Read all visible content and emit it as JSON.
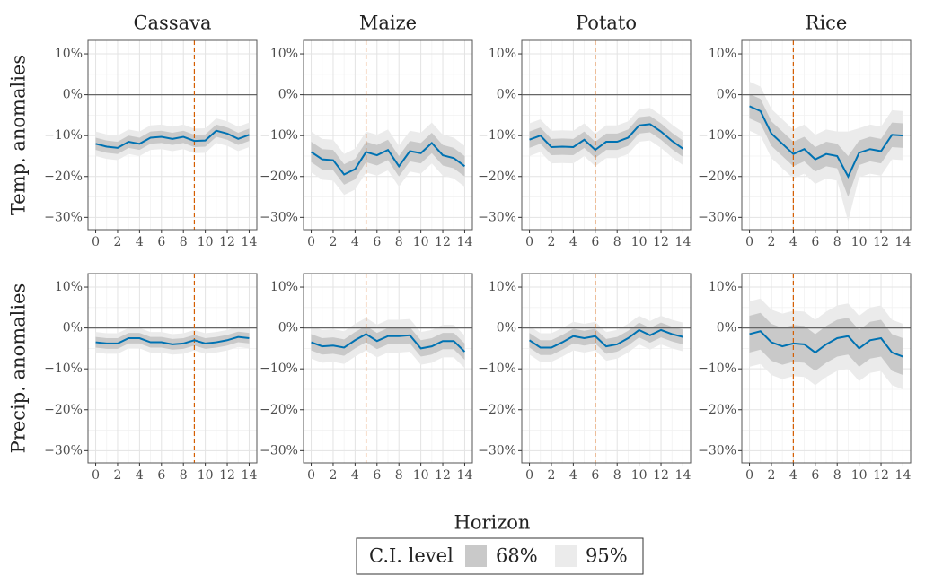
{
  "chart_data": {
    "type": "line",
    "columns": [
      "Cassava",
      "Maize",
      "Potato",
      "Rice"
    ],
    "rows": [
      "Temp. anomalies",
      "Precip. anomalies"
    ],
    "xlabel": "Horizon",
    "legend_title": "C.I. level",
    "bands": [
      {
        "name": "68%",
        "color": "#c9c9c9"
      },
      {
        "name": "95%",
        "color": "#ebebeb"
      }
    ],
    "line_color": "#0072b2",
    "vline_color": "#d55e00",
    "hline_color": "#666666",
    "hline": 0,
    "grid": true,
    "x": [
      0,
      1,
      2,
      3,
      4,
      5,
      6,
      7,
      8,
      9,
      10,
      11,
      12,
      13,
      14
    ],
    "xlim": [
      -0.7,
      14.7
    ],
    "xticks": [
      0,
      2,
      4,
      6,
      8,
      10,
      12,
      14
    ],
    "ylim": [
      -33,
      13.3
    ],
    "yticks": [
      {
        "value": 10,
        "label": "10%"
      },
      {
        "value": 0,
        "label": "0%"
      },
      {
        "value": -10,
        "label": "−10%"
      },
      {
        "value": -20,
        "label": "−20%"
      },
      {
        "value": -30,
        "label": "−30%"
      }
    ],
    "panels": [
      [
        {
          "vline": 9,
          "values": [
            -12,
            -12.7,
            -13,
            -11.5,
            -12,
            -10.5,
            -10.3,
            -10.8,
            -10.3,
            -11.3,
            -11.2,
            -8.8,
            -9.5,
            -10.8,
            -9.8
          ],
          "lo68": [
            -13.5,
            -14.2,
            -14.5,
            -13,
            -13.5,
            -12,
            -11.8,
            -12.3,
            -11.8,
            -12.8,
            -12.7,
            -10.3,
            -11,
            -12.3,
            -11.3
          ],
          "hi68": [
            -10.5,
            -11.2,
            -11.5,
            -10,
            -10.5,
            -9,
            -8.8,
            -9.3,
            -8.8,
            -9.8,
            -9.7,
            -7.3,
            -8,
            -9.3,
            -8.3
          ],
          "lo95": [
            -15,
            -15.7,
            -16,
            -14.5,
            -15,
            -13.5,
            -13.3,
            -13.8,
            -13.3,
            -14.3,
            -14.2,
            -11.8,
            -12.5,
            -13.8,
            -12.8
          ],
          "hi95": [
            -9,
            -9.7,
            -10,
            -8.5,
            -9,
            -7.5,
            -7.3,
            -7.8,
            -7.3,
            -8.3,
            -8.2,
            -5.8,
            -6.5,
            -7.8,
            -6.8
          ]
        },
        {
          "vline": 5,
          "values": [
            -14,
            -15.8,
            -16,
            -19.5,
            -18.2,
            -14,
            -14.8,
            -13.5,
            -17.5,
            -13.8,
            -14.3,
            -11.8,
            -14.8,
            -15.5,
            -17.5
          ],
          "lo68": [
            -16.5,
            -18.3,
            -18.5,
            -22,
            -20.7,
            -16.5,
            -17.3,
            -16,
            -20,
            -16.3,
            -16.8,
            -14.3,
            -17.3,
            -18,
            -20
          ],
          "hi68": [
            -11.5,
            -13.3,
            -13.5,
            -17,
            -15.7,
            -11.5,
            -12.3,
            -11,
            -15,
            -11.3,
            -11.8,
            -9.3,
            -12.3,
            -13,
            -15
          ],
          "lo95": [
            -19,
            -20.8,
            -21,
            -24.5,
            -23.2,
            -19,
            -19.8,
            -18.5,
            -22.5,
            -18.8,
            -19.3,
            -16.8,
            -19.8,
            -20.5,
            -22.5
          ],
          "hi95": [
            -9,
            -10.8,
            -11,
            -14.5,
            -13.2,
            -9,
            -9.8,
            -8.5,
            -12.5,
            -8.8,
            -9.3,
            -6.8,
            -9.8,
            -10.5,
            -12.5
          ]
        },
        {
          "vline": 6,
          "values": [
            -11,
            -10,
            -12.8,
            -12.7,
            -12.8,
            -11,
            -13.5,
            -11.5,
            -11.5,
            -10.5,
            -7.5,
            -7.2,
            -9,
            -11.3,
            -13.2
          ],
          "lo68": [
            -13,
            -12,
            -14.8,
            -14.7,
            -14.8,
            -13,
            -15.5,
            -13.5,
            -13.5,
            -12.5,
            -9.5,
            -9.2,
            -11,
            -13.3,
            -15.2
          ],
          "hi68": [
            -9,
            -8,
            -10.8,
            -10.7,
            -10.8,
            -9,
            -11.5,
            -9.5,
            -9.5,
            -8.5,
            -5.5,
            -5.2,
            -7,
            -9.3,
            -11.2
          ],
          "lo95": [
            -15,
            -14,
            -16.8,
            -16.7,
            -16.8,
            -15,
            -17.5,
            -15.5,
            -15.5,
            -14.5,
            -11.5,
            -11.2,
            -13,
            -15.3,
            -17.2
          ],
          "hi95": [
            -7,
            -6,
            -8.8,
            -8.7,
            -8.8,
            -7,
            -9.5,
            -7.5,
            -7.5,
            -6.5,
            -3.5,
            -3.2,
            -5,
            -7.3,
            -9.2
          ]
        },
        {
          "vline": 4,
          "values": [
            -2.8,
            -4,
            -9.5,
            -12,
            -14.5,
            -13.3,
            -15.8,
            -14.5,
            -15,
            -20,
            -14.2,
            -13.3,
            -13.8,
            -9.8,
            -10
          ],
          "lo68": [
            -5.8,
            -7,
            -12.5,
            -15,
            -17.5,
            -16.3,
            -18.8,
            -17.5,
            -18,
            -25,
            -17.2,
            -16.3,
            -16.8,
            -12.8,
            -13
          ],
          "hi68": [
            0.2,
            -1,
            -6.5,
            -9,
            -11.5,
            -10.3,
            -12.8,
            -11.5,
            -12,
            -15,
            -11.2,
            -10.3,
            -10.8,
            -6.8,
            -7
          ],
          "lo95": [
            -8.8,
            -10,
            -15.5,
            -18,
            -20.5,
            -19.3,
            -21.8,
            -20.5,
            -21,
            -31,
            -20.2,
            -19.3,
            -19.8,
            -15.8,
            -16
          ],
          "hi95": [
            3.2,
            2,
            -3.5,
            -6,
            -8.5,
            -7.3,
            -9.8,
            -8.5,
            -9,
            -9,
            -8.2,
            -7.3,
            -7.8,
            -3.8,
            -4
          ]
        }
      ],
      [
        {
          "vline": 9,
          "values": [
            -3.5,
            -3.8,
            -3.8,
            -2.5,
            -2.5,
            -3.5,
            -3.5,
            -4,
            -3.8,
            -3,
            -3.8,
            -3.5,
            -3,
            -2.2,
            -2.5
          ],
          "lo68": [
            -4.8,
            -5.1,
            -5.1,
            -3.8,
            -3.8,
            -4.8,
            -4.8,
            -5.3,
            -5.1,
            -4.3,
            -5.1,
            -4.8,
            -4.3,
            -3.5,
            -3.8
          ],
          "hi68": [
            -2.2,
            -2.5,
            -2.5,
            -1.2,
            -1.2,
            -2.2,
            -2.2,
            -2.7,
            -2.5,
            -1.7,
            -2.5,
            -2.2,
            -1.7,
            -0.9,
            -1.2
          ],
          "lo95": [
            -6,
            -6.3,
            -6.3,
            -5,
            -5,
            -6,
            -6,
            -6.5,
            -6.3,
            -5.5,
            -6.3,
            -6,
            -5.5,
            -4.7,
            -5
          ],
          "hi95": [
            -1,
            -1.3,
            -1.3,
            0,
            0,
            -1,
            -1,
            -1.5,
            -1.3,
            -0.5,
            -1.3,
            -1,
            -0.5,
            0.3,
            0
          ]
        },
        {
          "vline": 5,
          "values": [
            -3.5,
            -4.5,
            -4.3,
            -4.8,
            -3,
            -1.5,
            -3.2,
            -2,
            -2,
            -1.8,
            -5,
            -4.5,
            -3.2,
            -3.2,
            -5.8
          ],
          "lo68": [
            -5.5,
            -6.5,
            -6.3,
            -6.8,
            -5,
            -3.5,
            -5.2,
            -4,
            -4,
            -3.8,
            -7,
            -6.5,
            -5.2,
            -5.2,
            -7.8
          ],
          "hi68": [
            -1.5,
            -2.5,
            -2.3,
            -2.8,
            -1,
            0.5,
            -1.2,
            0,
            0,
            0.2,
            -3,
            -2.5,
            -1.2,
            -1.2,
            -3.8
          ],
          "lo95": [
            -7.5,
            -8.5,
            -8.3,
            -8.8,
            -7,
            -5.5,
            -7.2,
            -6,
            -6,
            -5.8,
            -9,
            -8.5,
            -7.2,
            -7.2,
            -9.8
          ],
          "hi95": [
            0.5,
            -0.5,
            -0.3,
            -0.8,
            1,
            2.5,
            0.8,
            2,
            2,
            2.2,
            -1,
            -0.5,
            0.8,
            0.8,
            -1.8
          ]
        },
        {
          "vline": 6,
          "values": [
            -3,
            -4.8,
            -4.8,
            -3.5,
            -2,
            -2.5,
            -2,
            -4.5,
            -4,
            -2.5,
            -0.5,
            -1.8,
            -0.5,
            -1.5,
            -2.2
          ],
          "lo68": [
            -4.8,
            -6.6,
            -6.6,
            -5.3,
            -3.8,
            -4.3,
            -3.8,
            -6.3,
            -5.8,
            -4.3,
            -2.3,
            -3.6,
            -2.3,
            -3.3,
            -4
          ],
          "hi68": [
            -1.2,
            -3,
            -3,
            -1.7,
            -0.2,
            -0.7,
            -0.2,
            -2.7,
            -2.2,
            -0.7,
            1.3,
            0,
            1.3,
            0.3,
            -0.4
          ],
          "lo95": [
            -6.5,
            -8.3,
            -8.3,
            -7,
            -5.5,
            -6,
            -5.5,
            -8,
            -7.5,
            -6,
            -4,
            -5.3,
            -4,
            -5,
            -5.7
          ],
          "hi95": [
            0.5,
            -1.3,
            -1.3,
            0,
            1.5,
            1,
            1.5,
            -1,
            -0.5,
            1,
            3,
            1.7,
            3,
            2,
            1.3
          ]
        },
        {
          "vline": 4,
          "values": [
            -1.5,
            -0.8,
            -3.5,
            -4.5,
            -3.8,
            -4,
            -6,
            -4,
            -2.5,
            -2,
            -5,
            -3,
            -2.5,
            -6,
            -7
          ],
          "lo68": [
            -6,
            -5.3,
            -8,
            -9,
            -8.3,
            -8.5,
            -10.5,
            -8.5,
            -7,
            -6.5,
            -9.5,
            -7.5,
            -7,
            -10.5,
            -11.5
          ],
          "hi68": [
            3,
            3.7,
            1,
            0,
            0.7,
            0.5,
            -1.5,
            0.5,
            2,
            2.5,
            -0.5,
            1.5,
            2,
            -1.5,
            -2.5
          ],
          "lo95": [
            -9.5,
            -8.8,
            -11.5,
            -12.5,
            -11.8,
            -12,
            -14,
            -12,
            -10.5,
            -10,
            -13,
            -11,
            -10.5,
            -14,
            -15
          ],
          "hi95": [
            6.5,
            7.2,
            4.5,
            3.5,
            4.2,
            4,
            2,
            4,
            5.5,
            6,
            3,
            5,
            5.5,
            2,
            1
          ]
        }
      ]
    ]
  }
}
